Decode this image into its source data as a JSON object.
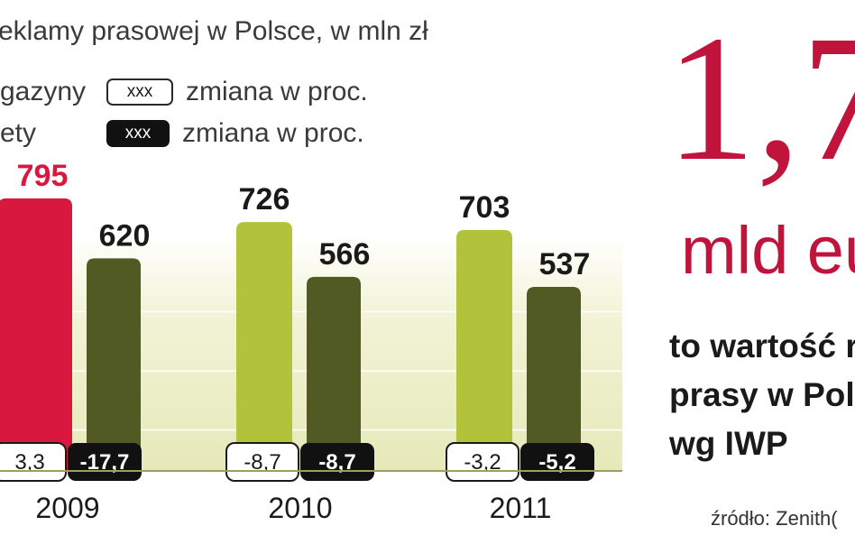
{
  "header": {
    "title": "eklamy prasowej w Polsce, w mln zł"
  },
  "legend": [
    {
      "label": "gazyny",
      "badge": "xxx",
      "style": "light",
      "description": "zmiana w proc."
    },
    {
      "label": "ety",
      "badge": "xxx",
      "style": "dark",
      "description": "zmiana w proc."
    }
  ],
  "chart_data": {
    "type": "bar",
    "categories": [
      "2009",
      "2010",
      "2011"
    ],
    "series": [
      {
        "values": [
          795,
          726,
          703
        ],
        "changes": [
          "3,3",
          "-8,7",
          "-3,2"
        ],
        "colors": [
          "#d8183f",
          "#b2c23a",
          "#b2c23a"
        ]
      },
      {
        "values": [
          620,
          566,
          537
        ],
        "changes": [
          "-17,7",
          "-8,7",
          "-5,2"
        ],
        "colors": [
          "#505a22",
          "#505a22",
          "#505a22"
        ]
      }
    ],
    "highlight_color": "#d8183f",
    "grid": true
  },
  "sidebar": {
    "big_number": "1,7",
    "unit": "mld eu",
    "caption_lines": [
      "to wartość r",
      "prasy w Pol",
      "wg IWP"
    ],
    "source": "źródło: Zenith("
  },
  "colors": {
    "accent": "#c0143c",
    "magazine_bar": "#b2c23a",
    "newspaper_bar": "#505a22"
  }
}
